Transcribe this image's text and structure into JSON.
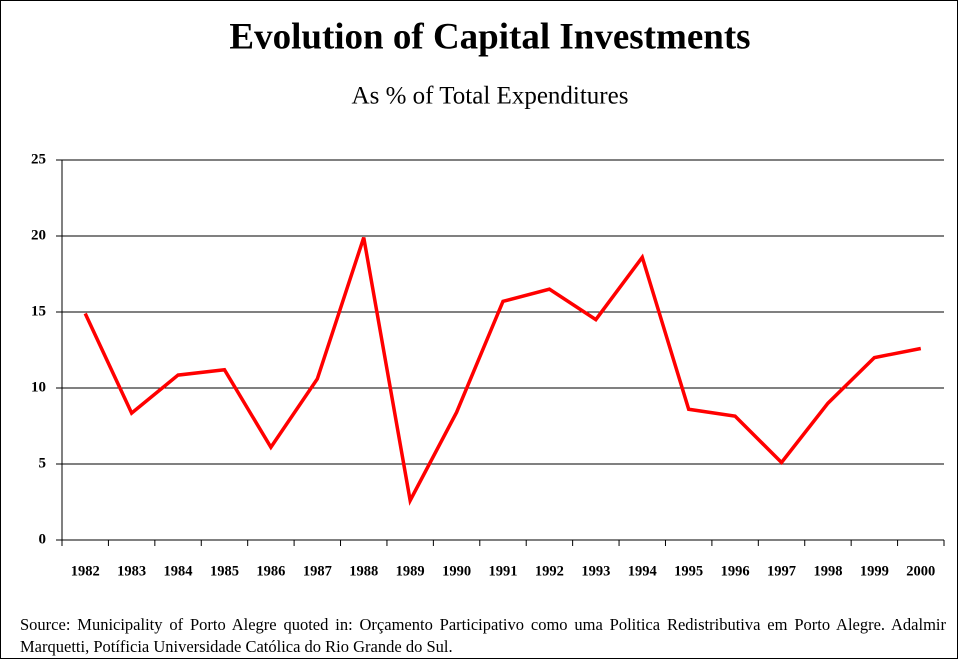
{
  "chart_data": {
    "type": "line",
    "title": "Evolution of Capital Investments",
    "subtitle": "As % of Total Expenditures",
    "categories": [
      "1982",
      "1983",
      "1984",
      "1985",
      "1986",
      "1987",
      "1988",
      "1989",
      "1990",
      "1991",
      "1992",
      "1993",
      "1994",
      "1995",
      "1996",
      "1997",
      "1998",
      "1999",
      "2000"
    ],
    "series": [
      {
        "name": "Capital Investments",
        "color": "#ff0000",
        "values": [
          14.9,
          8.35,
          10.85,
          11.2,
          6.1,
          10.6,
          19.9,
          2.6,
          8.4,
          15.7,
          16.5,
          14.5,
          18.6,
          8.6,
          8.15,
          5.1,
          9.0,
          12.0,
          12.6
        ]
      }
    ],
    "ylim": [
      0,
      25
    ],
    "yticks": [
      0,
      5,
      10,
      15,
      20,
      25
    ],
    "grid": true,
    "source": "Source: Municipality of Porto Alegre quoted in: Orçamento Participativo como uma Politica Redistributiva em Porto Alegre. Adalmir Marquetti, Potíficia Universidade Católica do Rio Grande do Sul."
  }
}
